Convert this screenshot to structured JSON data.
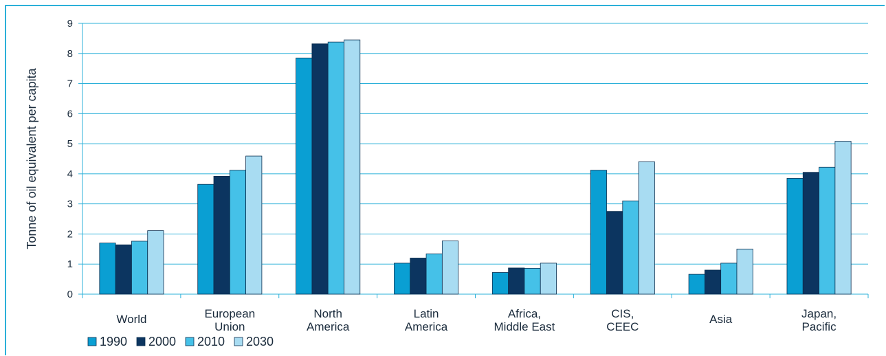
{
  "chart_data": {
    "type": "bar",
    "title": "",
    "xlabel": "",
    "ylabel": "Tonne of oil equivalent per capita",
    "ylim": [
      0,
      9
    ],
    "yticks": [
      0,
      1,
      2,
      3,
      4,
      5,
      6,
      7,
      8,
      9
    ],
    "grid": true,
    "legend_position": "bottom-left",
    "categories": [
      [
        "World"
      ],
      [
        "European",
        "Union"
      ],
      [
        "North",
        "America"
      ],
      [
        "Latin",
        "America"
      ],
      [
        "Africa,",
        "Middle East"
      ],
      [
        "CIS,",
        "CEEC"
      ],
      [
        "Asia"
      ],
      [
        "Japan,",
        "Pacific"
      ]
    ],
    "series": [
      {
        "name": "1990",
        "color": "#0a9fd3",
        "values": [
          1.7,
          3.65,
          7.85,
          1.03,
          0.72,
          4.12,
          0.66,
          3.85
        ]
      },
      {
        "name": "2000",
        "color": "#0c3560",
        "values": [
          1.64,
          3.92,
          8.32,
          1.2,
          0.87,
          2.75,
          0.8,
          4.05
        ]
      },
      {
        "name": "2010",
        "color": "#45c1e8",
        "values": [
          1.76,
          4.12,
          8.38,
          1.34,
          0.86,
          3.1,
          1.03,
          4.22
        ]
      },
      {
        "name": "2030",
        "color": "#a8dcf2",
        "values": [
          2.11,
          4.59,
          8.45,
          1.77,
          1.03,
          4.4,
          1.5,
          5.08
        ]
      }
    ]
  }
}
